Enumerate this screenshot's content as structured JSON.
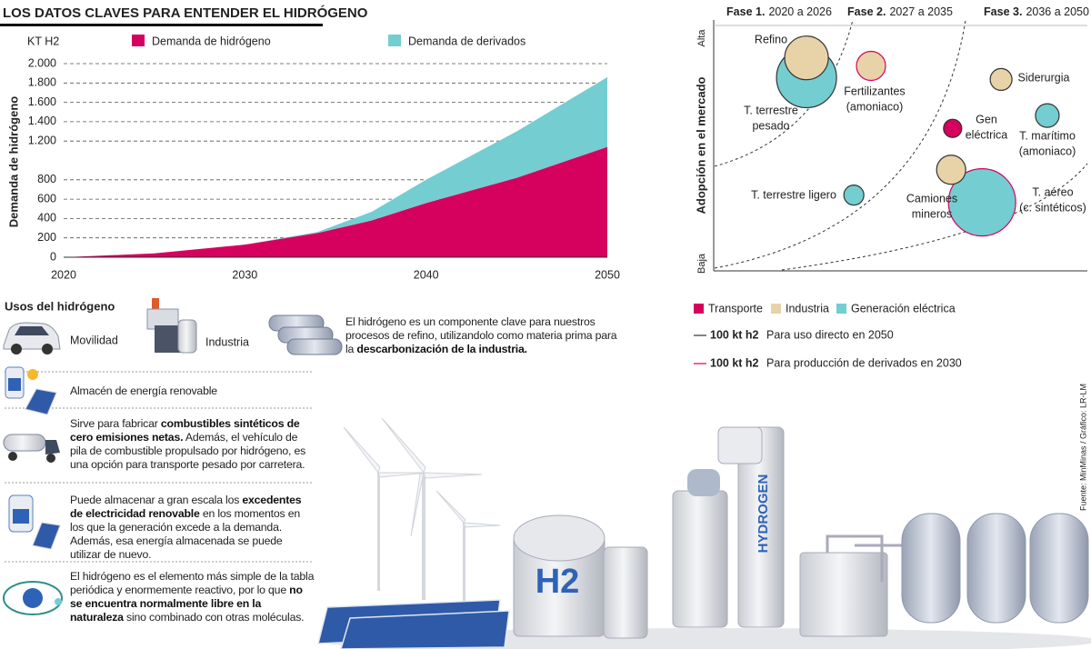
{
  "title": "LOS DATOS CLAVES PARA ENTENDER EL HIDRÓGENO",
  "chart_data": [
    {
      "type": "stacked-area",
      "y_unit": "KT H2",
      "y_label": "Demanda de hidrógeno",
      "x": [
        2020,
        2025,
        2030,
        2034,
        2037,
        2040,
        2045,
        2050
      ],
      "series": [
        {
          "name": "Demanda de hidrógeno",
          "color": "#d6005e",
          "values": [
            0,
            40,
            130,
            250,
            380,
            560,
            820,
            1140
          ]
        },
        {
          "name": "Demanda de derivados",
          "color": "#74cdd0",
          "values": [
            0,
            0,
            0,
            10,
            90,
            240,
            480,
            720
          ]
        }
      ],
      "xlim": [
        2020,
        2050
      ],
      "xticks": [
        2020,
        2030,
        2040,
        2050
      ],
      "ylim": [
        0,
        2000
      ],
      "yticks": [
        {
          "value": 2000,
          "label": "2.000"
        },
        {
          "value": 1800,
          "label": "1.800"
        },
        {
          "value": 1600,
          "label": "1.600"
        },
        {
          "value": 1400,
          "label": "1.400"
        },
        {
          "value": 1200,
          "label": "1.200"
        },
        800,
        600,
        400,
        200,
        0
      ],
      "grid": true
    },
    {
      "type": "bubble",
      "y_label": "Adopción en el mercado",
      "y_high": "Alta",
      "y_low": "Baja",
      "phases": [
        {
          "label": "Fase 1.",
          "years": "2020 a 2026"
        },
        {
          "label": "Fase 2.",
          "years": "2027 a 2035"
        },
        {
          "label": "Fase 3.",
          "years": "2036 a 2050"
        }
      ],
      "xlim": [
        0,
        100
      ],
      "ylim": [
        0,
        100
      ],
      "series": [
        {
          "label": [
            "T. terrestre",
            "pesado"
          ],
          "x": 24.9,
          "y": 77.0,
          "size": 33,
          "color": "#74cdd0",
          "stroke": "#333333"
        },
        {
          "label": [
            "Refino"
          ],
          "x": 24.9,
          "y": 84.9,
          "size": 24,
          "color": "#e8d2a8",
          "stroke": "#333333"
        },
        {
          "label": [
            "Fertilizantes",
            "(amoniaco)"
          ],
          "x": 42.2,
          "y": 81.7,
          "size": 16,
          "color": "#e8d2a8",
          "stroke": "#d6005e"
        },
        {
          "label": [
            "Siderurgia"
          ],
          "x": 77.1,
          "y": 76.3,
          "size": 12,
          "color": "#e8d2a8",
          "stroke": "#333333"
        },
        {
          "label": [
            "Gen",
            "eléctrica"
          ],
          "x": 64.1,
          "y": 56.8,
          "size": 10,
          "color": "#d6005e",
          "stroke": "#333333"
        },
        {
          "label": [
            "T. marítimo",
            "(amoniaco)"
          ],
          "x": 89.5,
          "y": 61.9,
          "size": 13,
          "color": "#74cdd0",
          "stroke": "#333333"
        },
        {
          "label": [
            "T. terrestre ligero"
          ],
          "x": 37.6,
          "y": 30.2,
          "size": 11,
          "color": "#74cdd0",
          "stroke": "#333333"
        },
        {
          "label": [
            "T. aéreo",
            "(c. sintéticos)"
          ],
          "x": 72.0,
          "y": 27.3,
          "size": 37,
          "color": "#74cdd0",
          "stroke": "#d6005e"
        },
        {
          "label": [
            "Camiones",
            "mineros"
          ],
          "x": 63.7,
          "y": 40.3,
          "size": 16,
          "color": "#e8d2a8",
          "stroke": "#333333"
        }
      ],
      "legend": [
        {
          "name": "Transporte",
          "color": "#d6005e"
        },
        {
          "name": "Industria",
          "color": "#e8d2a8"
        },
        {
          "name": "Generación eléctrica",
          "color": "#74cdd0"
        }
      ],
      "size_legend": [
        {
          "label": "100 kt h2",
          "text": "Para uso directo en 2050",
          "color": "#333333"
        },
        {
          "label": "100 kt h2",
          "text": "Para producción de derivados en 2030",
          "color": "#d6005e"
        }
      ]
    }
  ],
  "uses": {
    "title": "Usos del hidrógeno",
    "items": [
      "Movilidad",
      "Industria"
    ],
    "paragraphs": [
      [
        {
          "text": "El hidrógeno es un componente clave para nuestros procesos de refino, utilizandolo como materia prima para la ",
          "bold": false
        },
        {
          "text": "descarbonización de la industria.",
          "bold": true
        }
      ],
      [
        {
          "text": "Almacén de energía renovable",
          "bold": false
        }
      ],
      [
        {
          "text": "Sirve para fabricar ",
          "bold": false
        },
        {
          "text": "combustibles sintéticos de cero emisiones netas.",
          "bold": true
        },
        {
          "text": " Además, el vehículo de pila de combustible propulsado por hidrógeno, es una opción para transporte pesado por carretera.",
          "bold": false
        }
      ],
      [
        {
          "text": "Puede almacenar a gran escala los ",
          "bold": false
        },
        {
          "text": "excedentes de electricidad renovable",
          "bold": true
        },
        {
          "text": " en los momentos en los que la generación excede a la demanda. Además, esa energía almacenada se puede utilizar de nuevo.",
          "bold": false
        }
      ],
      [
        {
          "text": "El hidrógeno es el elemento más simple de la tabla periódica y enormemente reactivo, por lo que ",
          "bold": false
        },
        {
          "text": "no se encuentra normalmente libre en la naturaleza",
          "bold": true
        },
        {
          "text": " sino combinado con otras moléculas.",
          "bold": false
        }
      ]
    ]
  },
  "illustration": {
    "tank_text": "H2",
    "tower_text": "HYDROGEN"
  },
  "source": "Fuente: MinMinas / Gráfico: LR-LM"
}
